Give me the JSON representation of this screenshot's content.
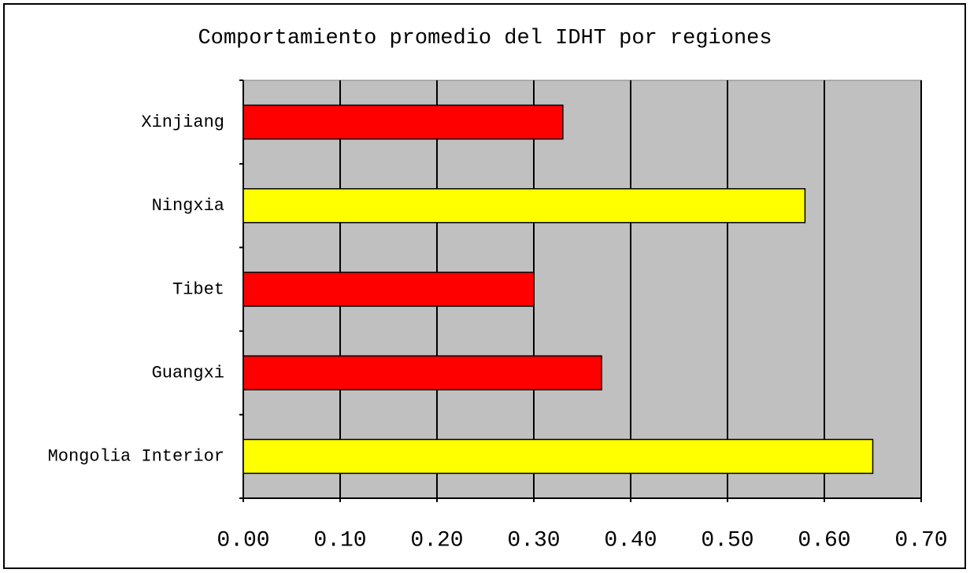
{
  "chart_data": {
    "type": "hbar",
    "title": "Comportamiento promedio del IDHT por regiones",
    "categories": [
      "Xinjiang",
      "Ningxia",
      "Tibet",
      "Guangxi",
      "Mongolia Interior"
    ],
    "values": [
      0.33,
      0.58,
      0.3,
      0.37,
      0.65
    ],
    "colors": [
      "#ff0000",
      "#ffff00",
      "#ff0000",
      "#ff0000",
      "#ffff00"
    ],
    "xlim": [
      0,
      0.7
    ],
    "xticks": [
      {
        "value": 0,
        "label": "0.00"
      },
      {
        "value": 0.1,
        "label": "0.10"
      },
      {
        "value": 0.2,
        "label": "0.20"
      },
      {
        "value": 0.3,
        "label": "0.30"
      },
      {
        "value": 0.4,
        "label": "0.40"
      },
      {
        "value": 0.5,
        "label": "0.50"
      },
      {
        "value": 0.6,
        "label": "0.60"
      },
      {
        "value": 0.7,
        "label": "0.70"
      }
    ],
    "grid": true
  }
}
